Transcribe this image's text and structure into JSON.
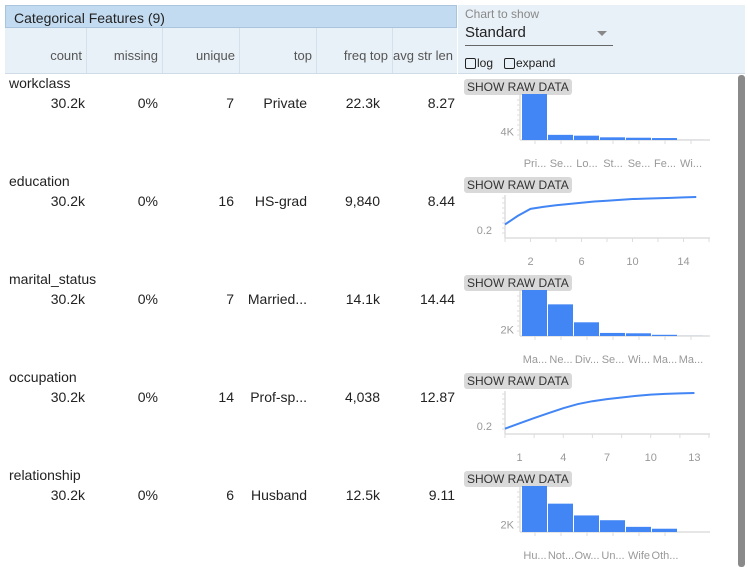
{
  "header": {
    "title": "Categorical Features (9)",
    "columns": [
      "count",
      "missing",
      "unique",
      "top",
      "freq top",
      "avg str len"
    ]
  },
  "controls": {
    "chart_label": "Chart to show",
    "chart_value": "Standard",
    "log_label": "log",
    "expand_label": "expand"
  },
  "show_raw_label": "SHOW RAW DATA",
  "colors": {
    "bar": "#4285f4",
    "axis": "#ddd"
  },
  "rows": [
    {
      "name": "workclass",
      "count": "30.2k",
      "missing": "0%",
      "unique": "7",
      "top": "Private",
      "freq_top": "22.3k",
      "avg_str_len": "8.27",
      "chart_data": {
        "type": "bar",
        "categories": [
          "Pri...",
          "Se...",
          "Lo...",
          "St...",
          "Se...",
          "Fe...",
          "Wi..."
        ],
        "values": [
          22300,
          2500,
          2100,
          1300,
          1100,
          950,
          14
        ],
        "ytick_label": "4K",
        "ytick": 4000,
        "ymax": 22300
      }
    },
    {
      "name": "education",
      "count": "30.2k",
      "missing": "0%",
      "unique": "16",
      "top": "HS-grad",
      "freq_top": "9,840",
      "avg_str_len": "8.44",
      "chart_data": {
        "type": "line",
        "x": [
          0,
          1,
          2,
          3,
          4,
          5,
          6,
          7,
          8,
          9,
          10,
          11,
          12,
          13,
          14,
          15
        ],
        "values": [
          0.33,
          0.54,
          0.71,
          0.76,
          0.8,
          0.83,
          0.86,
          0.89,
          0.91,
          0.93,
          0.95,
          0.96,
          0.97,
          0.98,
          0.99,
          1.0
        ],
        "xticks": [
          2,
          6,
          10,
          14
        ],
        "xmax": 16,
        "ytick_label": "0.2",
        "ytick": 0.2
      }
    },
    {
      "name": "marital_status",
      "count": "30.2k",
      "missing": "0%",
      "unique": "7",
      "top": "Married...",
      "freq_top": "14.1k",
      "avg_str_len": "14.44",
      "chart_data": {
        "type": "bar",
        "categories": [
          "Ma...",
          "Ne...",
          "Div...",
          "Se...",
          "Wi...",
          "Ma...",
          "Ma..."
        ],
        "values": [
          14100,
          9700,
          4200,
          940,
          830,
          370,
          21
        ],
        "ytick_label": "2K",
        "ytick": 2000,
        "ymax": 14100
      }
    },
    {
      "name": "occupation",
      "count": "30.2k",
      "missing": "0%",
      "unique": "14",
      "top": "Prof-sp...",
      "freq_top": "4,038",
      "avg_str_len": "12.87",
      "chart_data": {
        "type": "line",
        "x": [
          0,
          1,
          2,
          3,
          4,
          5,
          6,
          7,
          8,
          9,
          10,
          11,
          12,
          13
        ],
        "values": [
          0.13,
          0.26,
          0.39,
          0.51,
          0.63,
          0.73,
          0.8,
          0.85,
          0.89,
          0.93,
          0.96,
          0.98,
          0.99,
          1.0
        ],
        "xticks": [
          1,
          4,
          7,
          10,
          13
        ],
        "xmax": 14,
        "ytick_label": "0.2",
        "ytick": 0.2
      }
    },
    {
      "name": "relationship",
      "count": "30.2k",
      "missing": "0%",
      "unique": "6",
      "top": "Husband",
      "freq_top": "12.5k",
      "avg_str_len": "9.11",
      "chart_data": {
        "type": "bar",
        "categories": [
          "Hu...",
          "Not...",
          "Ow...",
          "Un...",
          "Wife",
          "Oth..."
        ],
        "values": [
          12500,
          7700,
          4500,
          3200,
          1400,
          890
        ],
        "ytick_label": "2K",
        "ytick": 2000,
        "ymax": 12500
      }
    }
  ]
}
